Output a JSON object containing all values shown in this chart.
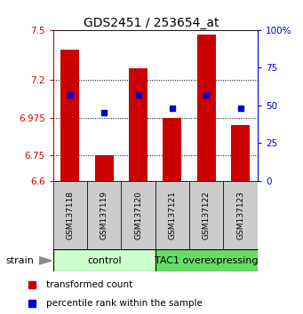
{
  "title": "GDS2451 / 253654_at",
  "samples": [
    "GSM137118",
    "GSM137119",
    "GSM137120",
    "GSM137121",
    "GSM137122",
    "GSM137123"
  ],
  "red_values": [
    7.38,
    6.75,
    7.27,
    6.975,
    7.47,
    6.93
  ],
  "blue_values": [
    57,
    45,
    57,
    48,
    57,
    48
  ],
  "y_min": 6.6,
  "y_max": 7.5,
  "y_ticks": [
    6.6,
    6.75,
    6.975,
    7.2,
    7.5
  ],
  "y_right_ticks": [
    0,
    25,
    50,
    75,
    100
  ],
  "y_right_labels": [
    "0",
    "25",
    "50",
    "75",
    "100%"
  ],
  "dotted_lines": [
    6.75,
    6.975,
    7.2
  ],
  "group_labels": [
    "control",
    "TAC1 overexpressing"
  ],
  "group_ranges": [
    [
      0,
      3
    ],
    [
      3,
      6
    ]
  ],
  "group_colors_light": [
    "#ccffcc",
    "#66dd66"
  ],
  "bar_color": "#cc0000",
  "dot_color": "#0000cc",
  "sample_box_color": "#cccccc",
  "strain_label": "strain",
  "legend_red": "transformed count",
  "legend_blue": "percentile rank within the sample",
  "bar_width": 0.55,
  "title_fontsize": 10,
  "tick_fontsize": 7.5,
  "sample_fontsize": 6.5,
  "group_fontsize": 8
}
